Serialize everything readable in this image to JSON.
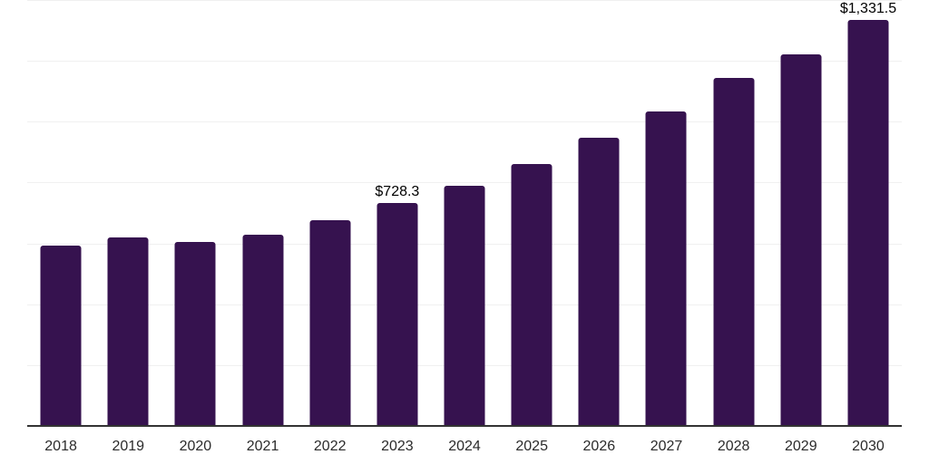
{
  "chart": {
    "background_color": "#ffffff",
    "bar_color": "#36124F",
    "axis_line_color": "#333333",
    "gridline_color": "#f0f0f0",
    "year_label_color": "#2b2b2b",
    "value_label_color": "#000000"
  },
  "chart_data": {
    "type": "bar",
    "title": "",
    "xlabel": "",
    "ylabel": "",
    "categories": [
      "2018",
      "2019",
      "2020",
      "2021",
      "2022",
      "2023",
      "2024",
      "2025",
      "2026",
      "2027",
      "2028",
      "2029",
      "2030"
    ],
    "values": [
      589,
      616,
      601,
      626,
      673,
      728.3,
      787,
      859,
      943,
      1032,
      1142,
      1219,
      1331.5
    ],
    "point_labels": [
      "",
      "",
      "",
      "",
      "",
      "$728.3",
      "",
      "",
      "",
      "",
      "",
      "",
      "$1,331.5"
    ],
    "ylim": [
      0,
      1400
    ],
    "gridline_values": [
      200,
      400,
      600,
      800,
      1000,
      1200,
      1400
    ],
    "grid": "horizontal",
    "y_axis_tick_labels": "hidden",
    "legend_position": "none"
  }
}
